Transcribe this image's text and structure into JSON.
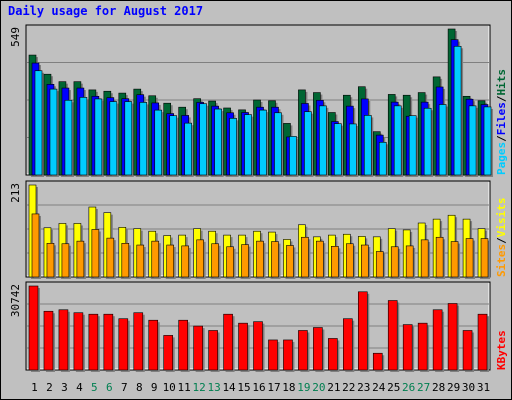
{
  "chart_data": {
    "type": "bar",
    "title": "Daily usage for August 2017",
    "colors": {
      "hits": "#006633",
      "files": "#0000ff",
      "pages": "#00ccff",
      "visits": "#ffff00",
      "sites": "#ff9900",
      "kbytes": "#ff0000",
      "weekend_label": "#007f50",
      "weekday_label": "#000000"
    },
    "days": [
      "1",
      "2",
      "3",
      "4",
      "5",
      "6",
      "7",
      "8",
      "9",
      "10",
      "11",
      "12",
      "13",
      "14",
      "15",
      "16",
      "17",
      "18",
      "19",
      "20",
      "21",
      "22",
      "23",
      "24",
      "25",
      "26",
      "27",
      "28",
      "29",
      "30",
      "31"
    ],
    "weekend_days": [
      "5",
      "6",
      "12",
      "13",
      "19",
      "20",
      "26",
      "27"
    ],
    "panels": [
      {
        "id": "hits",
        "max_label": "549",
        "ylim": [
          0,
          549
        ],
        "side_labels": [
          "Pages",
          "Files",
          "Hits"
        ],
        "series": [
          {
            "name": "Hits",
            "values": [
              451,
              379,
              351,
              351,
              320,
              315,
              308,
              323,
              298,
              270,
              255,
              287,
              278,
              252,
              245,
              282,
              279,
              194,
              320,
              310,
              235,
              300,
              332,
              163,
              303,
              300,
              310,
              369,
              549,
              296,
              279
            ]
          },
          {
            "name": "Files",
            "values": [
              421,
              341,
              327,
              327,
              296,
              291,
              287,
              302,
              271,
              231,
              224,
              273,
              259,
              234,
              235,
              255,
              255,
              143,
              269,
              281,
              201,
              259,
              286,
              150,
              274,
              221,
              274,
              331,
              509,
              285,
              265
            ]
          },
          {
            "name": "Pages",
            "values": [
              392,
              323,
              281,
              292,
              286,
              276,
              276,
              273,
              244,
              223,
              195,
              268,
              248,
              213,
              227,
              244,
              234,
              145,
              238,
              260,
              193,
              192,
              224,
              123,
              260,
              223,
              251,
              265,
              484,
              260,
              256
            ]
          }
        ]
      },
      {
        "id": "visits",
        "max_label": "213",
        "ylim": [
          0,
          213
        ],
        "side_labels": [
          "Sites",
          "Visits"
        ],
        "series": [
          {
            "name": "Visits",
            "values": [
              213,
              114,
              124,
              124,
              162,
              149,
              115,
              112,
              106,
              96,
              97,
              112,
              106,
              97,
              97,
              106,
              104,
              87,
              121,
              93,
              97,
              99,
              94,
              93,
              112,
              109,
              125,
              134,
              143,
              134,
              112
            ]
          },
          {
            "name": "Sites",
            "values": [
              146,
              78,
              77,
              83,
              110,
              90,
              78,
              74,
              83,
              74,
              72,
              86,
              77,
              70,
              75,
              83,
              82,
              73,
              92,
              83,
              71,
              77,
              74,
              59,
              70,
              72,
              86,
              92,
              82,
              89,
              89
            ]
          }
        ]
      },
      {
        "id": "kbytes",
        "max_label": "30742",
        "ylim": [
          0,
          30742
        ],
        "side_labels": [
          "KBytes"
        ],
        "series": [
          {
            "name": "KBytes",
            "values": [
              30742,
              21500,
              22044,
              20963,
              20422,
              20422,
              18770,
              20963,
              18221,
              12660,
              18221,
              16080,
              14460,
              20422,
              17141,
              17691,
              10998,
              10998,
              14460,
              15547,
              11540,
              18770,
              28624,
              6136,
              25426,
              16617,
              17141,
              22044,
              24342,
              14460,
              20422
            ]
          }
        ]
      }
    ]
  }
}
